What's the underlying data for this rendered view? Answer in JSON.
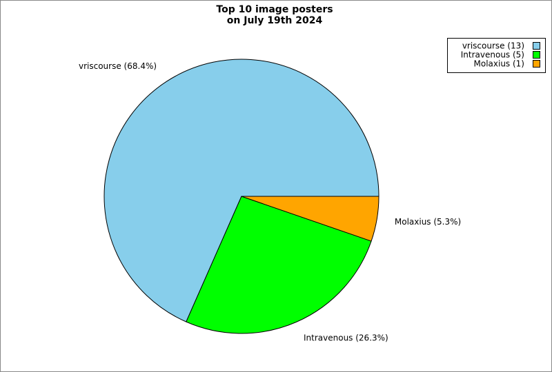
{
  "chart_data": {
    "type": "pie",
    "title": [
      "Top 10 image posters",
      "on July 19th 2024"
    ],
    "values": [
      68.4,
      26.3,
      5.3
    ],
    "value_labels": [
      "vriscourse (68.4%)",
      "Intravenous (26.3%)",
      "Molaxius (5.3%)"
    ],
    "colors": [
      "#87ceeb",
      "#00ff00",
      "#ffa500"
    ],
    "legend": {
      "labels": [
        "vriscourse (13)",
        "Intravenous (5)",
        "Molaxius (1)"
      ],
      "position": "top-right"
    }
  }
}
